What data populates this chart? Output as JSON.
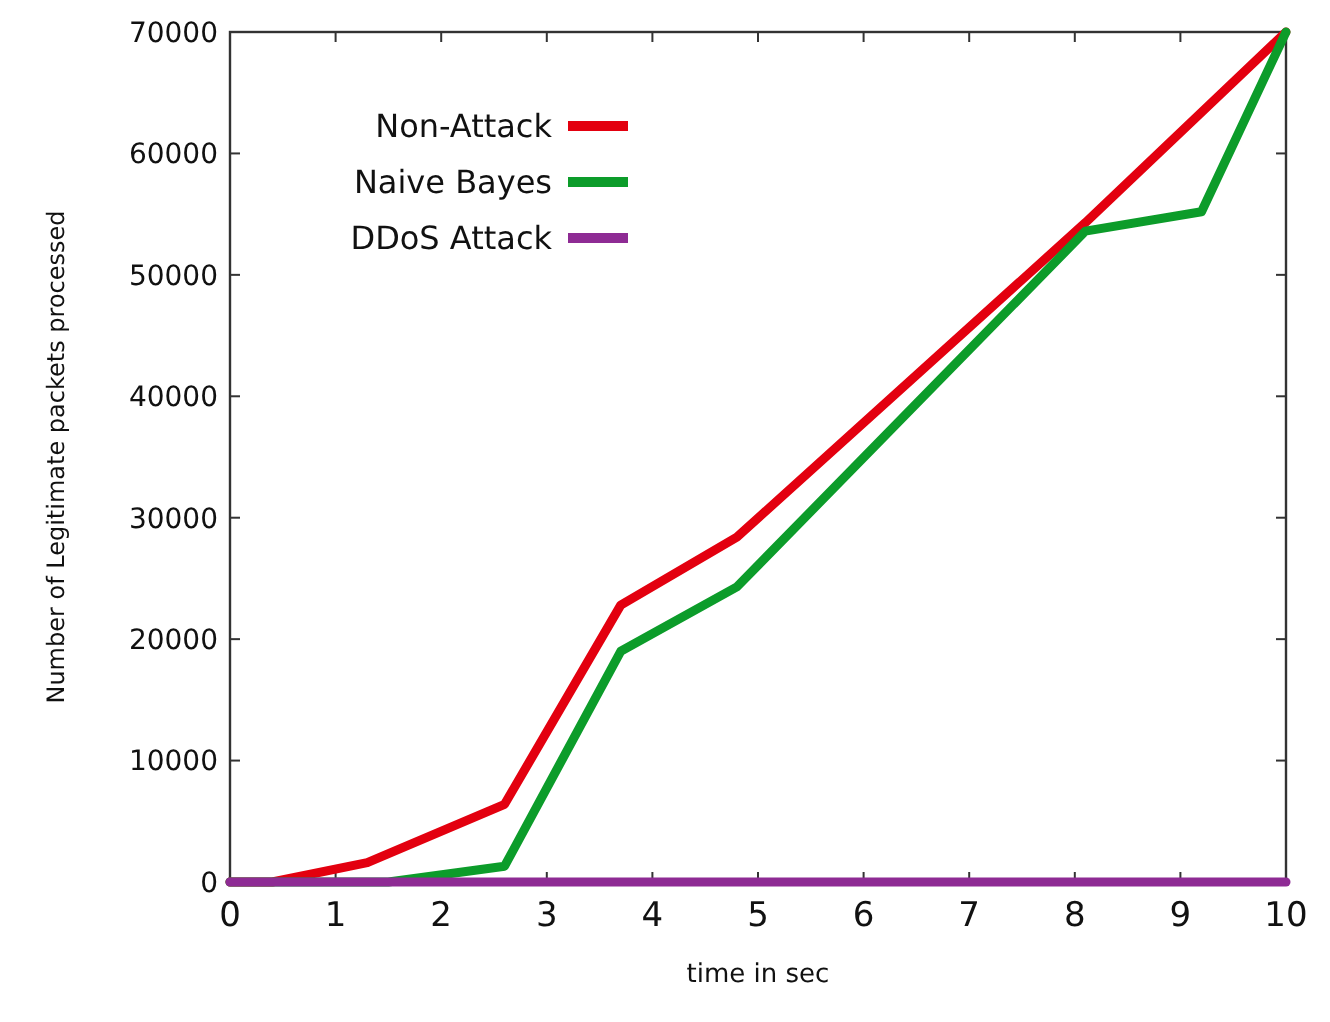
{
  "chart_data": {
    "type": "line",
    "xlabel": "time in sec",
    "ylabel": "Number of Legitimate packets processed",
    "xlim": [
      0,
      10
    ],
    "xticks": [
      0,
      1,
      2,
      3,
      4,
      5,
      6,
      7,
      8,
      9,
      10
    ],
    "ylim": [
      0,
      70000
    ],
    "yticks": [
      0,
      10000,
      20000,
      30000,
      40000,
      50000,
      60000,
      70000
    ],
    "grid": false,
    "legend": "top left",
    "line_style": "solid",
    "series": [
      {
        "name": "Non-Attack",
        "color": "#e3000f",
        "x": [
          0,
          0.4,
          1.3,
          2.6,
          3.7,
          4.8,
          8.1,
          10
        ],
        "values": [
          0,
          0,
          1600,
          6400,
          22800,
          28400,
          54300,
          70000
        ]
      },
      {
        "name": "Naive Bayes",
        "color": "#0c9c2a",
        "x": [
          0,
          1.5,
          2.6,
          3.7,
          4.8,
          8.1,
          9.2,
          10
        ],
        "values": [
          0,
          0,
          1300,
          19000,
          24300,
          53600,
          55200,
          70000
        ]
      },
      {
        "name": "DDoS Attack",
        "color": "#8e2b94",
        "x": [
          0,
          10
        ],
        "values": [
          0,
          0
        ]
      }
    ]
  }
}
